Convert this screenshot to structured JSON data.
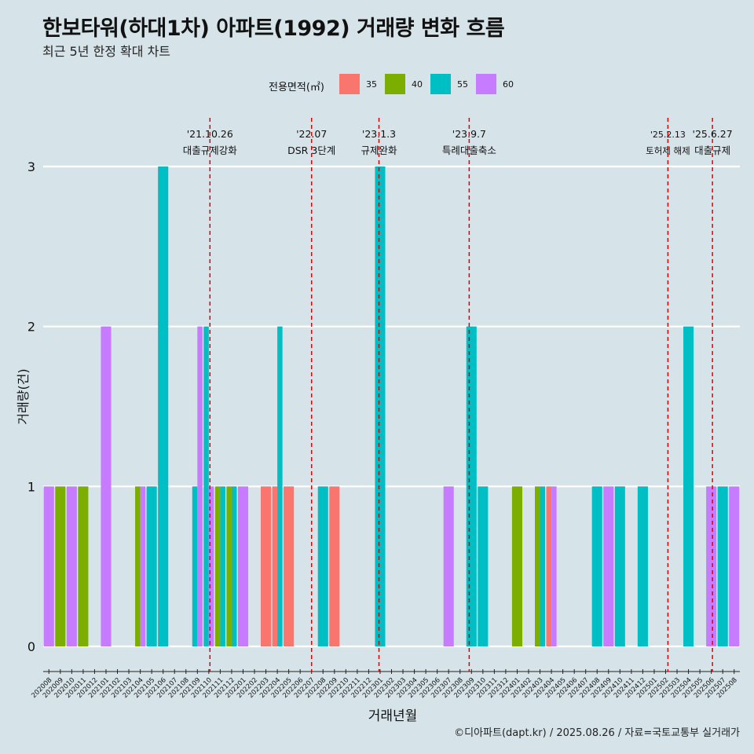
{
  "title": "한보타워(하대1차) 아파트(1992) 거래량 변화 흐름",
  "subtitle": "최근 5년 한정 확대 차트",
  "caption": "©디아파트(dapt.kr) / 2025.08.26 / 자료=국토교통부 실거래가",
  "colors": {
    "background": "#d6e4ea",
    "grid": "#ffffff",
    "event_line": "#e00000"
  },
  "chart_data": {
    "type": "bar",
    "title": "한보타워(하대1차) 아파트(1992) 거래량 변화 흐름",
    "subtitle": "최근 5년 한정 확대 차트",
    "xlabel": "거래년월",
    "ylabel": "거래량(건)",
    "ylim": [
      0,
      3
    ],
    "yticks": [
      0,
      1,
      2,
      3
    ],
    "grid": true,
    "legend_position": "top",
    "legend_title": "전용면적(㎡)",
    "categories": [
      "202008",
      "202009",
      "202010",
      "202011",
      "202012",
      "202101",
      "202102",
      "202103",
      "202104",
      "202105",
      "202106",
      "202107",
      "202108",
      "202109",
      "202110",
      "202111",
      "202112",
      "202201",
      "202202",
      "202203",
      "202204",
      "202205",
      "202206",
      "202207",
      "202208",
      "202209",
      "202210",
      "202211",
      "202212",
      "202301",
      "202302",
      "202303",
      "202304",
      "202305",
      "202306",
      "202307",
      "202308",
      "202309",
      "202310",
      "202311",
      "202312",
      "202401",
      "202402",
      "202403",
      "202404",
      "202405",
      "202406",
      "202407",
      "202408",
      "202409",
      "202410",
      "202411",
      "202412",
      "202501",
      "202502",
      "202503",
      "202504",
      "202505",
      "202506",
      "202507",
      "202508"
    ],
    "series": [
      {
        "name": "35",
        "color": "#f8766d",
        "values": [
          0,
          0,
          0,
          0,
          0,
          0,
          0,
          0,
          0,
          0,
          0,
          0,
          0,
          0,
          0,
          0,
          0,
          0,
          0,
          1,
          1,
          1,
          0,
          0,
          0,
          1,
          0,
          0,
          0,
          0,
          0,
          0,
          0,
          0,
          0,
          0,
          0,
          0,
          0,
          0,
          0,
          0,
          0,
          0,
          1,
          0,
          0,
          0,
          0,
          0,
          0,
          0,
          0,
          0,
          0,
          0,
          0,
          0,
          0,
          0,
          0
        ]
      },
      {
        "name": "40",
        "color": "#7cae00",
        "values": [
          0,
          1,
          0,
          1,
          0,
          0,
          0,
          0,
          1,
          0,
          0,
          0,
          0,
          0,
          0,
          1,
          1,
          0,
          0,
          0,
          0,
          0,
          0,
          0,
          0,
          0,
          0,
          0,
          0,
          0,
          0,
          0,
          0,
          0,
          0,
          0,
          0,
          0,
          0,
          0,
          0,
          1,
          0,
          1,
          0,
          0,
          0,
          0,
          0,
          0,
          0,
          0,
          0,
          0,
          0,
          0,
          0,
          0,
          0,
          0,
          0
        ]
      },
      {
        "name": "55",
        "color": "#00bfc4",
        "values": [
          0,
          0,
          0,
          0,
          0,
          0,
          0,
          0,
          0,
          1,
          3,
          0,
          0,
          1,
          2,
          1,
          1,
          0,
          0,
          0,
          2,
          0,
          0,
          0,
          1,
          0,
          0,
          0,
          0,
          3,
          0,
          0,
          0,
          0,
          0,
          0,
          0,
          2,
          1,
          0,
          0,
          0,
          0,
          1,
          0,
          0,
          0,
          0,
          1,
          0,
          1,
          0,
          1,
          0,
          0,
          0,
          2,
          0,
          0,
          1,
          0
        ]
      },
      {
        "name": "60",
        "color": "#c77cff",
        "values": [
          1,
          0,
          1,
          0,
          0,
          2,
          0,
          0,
          1,
          0,
          0,
          0,
          0,
          2,
          1,
          0,
          0,
          1,
          0,
          0,
          0,
          0,
          0,
          0,
          0,
          0,
          0,
          0,
          0,
          0,
          0,
          0,
          0,
          0,
          0,
          1,
          0,
          0,
          0,
          0,
          0,
          0,
          0,
          0,
          1,
          0,
          0,
          0,
          0,
          1,
          0,
          0,
          0,
          0,
          0,
          0,
          0,
          0,
          1,
          0,
          1
        ]
      }
    ],
    "events": [
      {
        "date": "'21.10.26",
        "label": "대출규제강화",
        "position": 14.6
      },
      {
        "date": "'22.07",
        "label": "DSR 3단계",
        "position": 23.5
      },
      {
        "date": "'23.1.3",
        "label": "규제완화",
        "position": 29.4
      },
      {
        "date": "'23.9.7",
        "label": "특례대출축소",
        "position": 37.3
      },
      {
        "date": "'25.2.13",
        "label": "토허제 해제",
        "position": 54.7
      },
      {
        "date": "'25.6.27",
        "label": "대출규제",
        "position": 58.6
      }
    ]
  }
}
